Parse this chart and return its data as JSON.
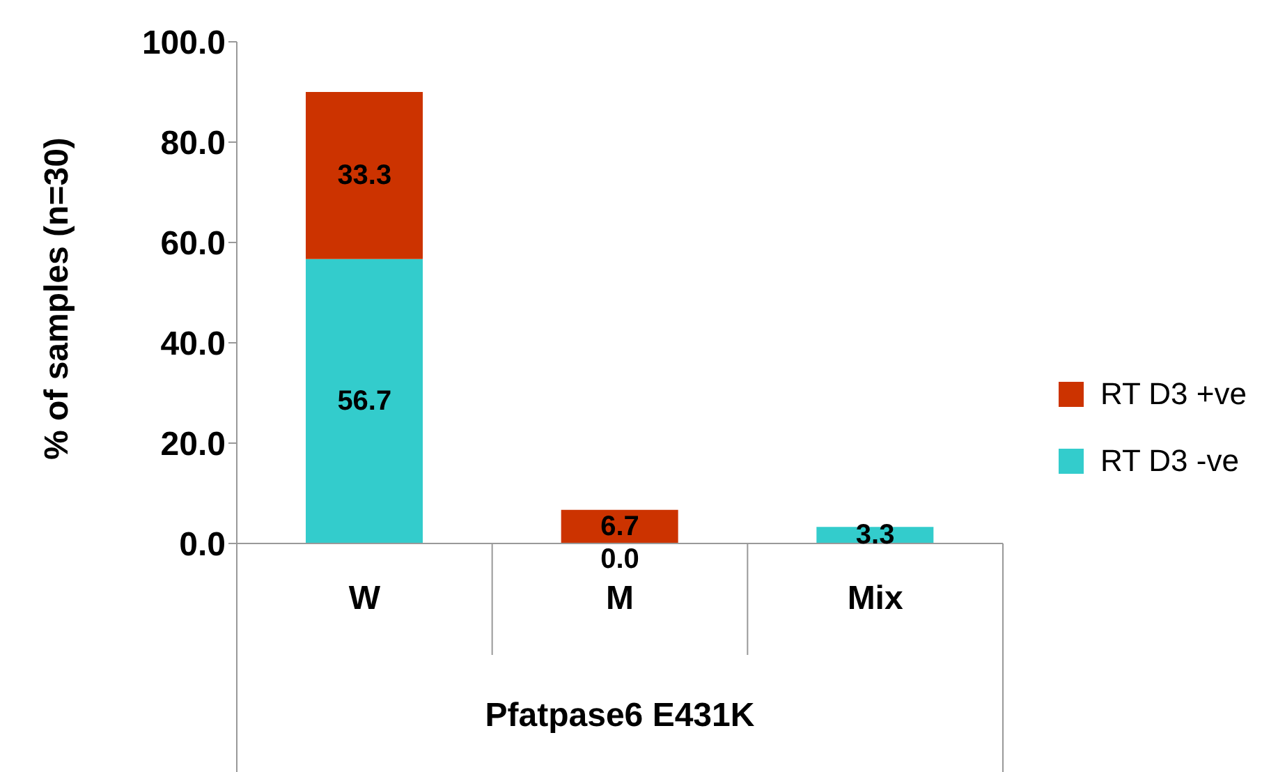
{
  "chart_data": {
    "type": "bar",
    "stacked": true,
    "ylabel": "% of samples (n=30)",
    "xlabel": "Pfatpase6 E431K",
    "categories": [
      "W",
      "M",
      "Mix"
    ],
    "series": [
      {
        "name": "RT D3 -ve",
        "color": "#33cccc",
        "values": [
          56.7,
          0.0,
          3.3
        ],
        "value_labels": [
          "56.7",
          "0.0",
          "3.3"
        ]
      },
      {
        "name": "RT D3 +ve",
        "color": "#cc3300",
        "values": [
          33.3,
          6.7,
          0
        ],
        "value_labels": [
          "33.3",
          "6.7",
          null
        ]
      }
    ],
    "ylim": [
      0,
      100
    ],
    "yticks": [
      {
        "value": 0,
        "label": "0.0"
      },
      {
        "value": 20,
        "label": "20.0"
      },
      {
        "value": 40,
        "label": "40.0"
      },
      {
        "value": 60,
        "label": "60.0"
      },
      {
        "value": 80,
        "label": "80.0"
      },
      {
        "value": 100,
        "label": "100.0"
      }
    ],
    "grid": false,
    "legend": "right"
  }
}
